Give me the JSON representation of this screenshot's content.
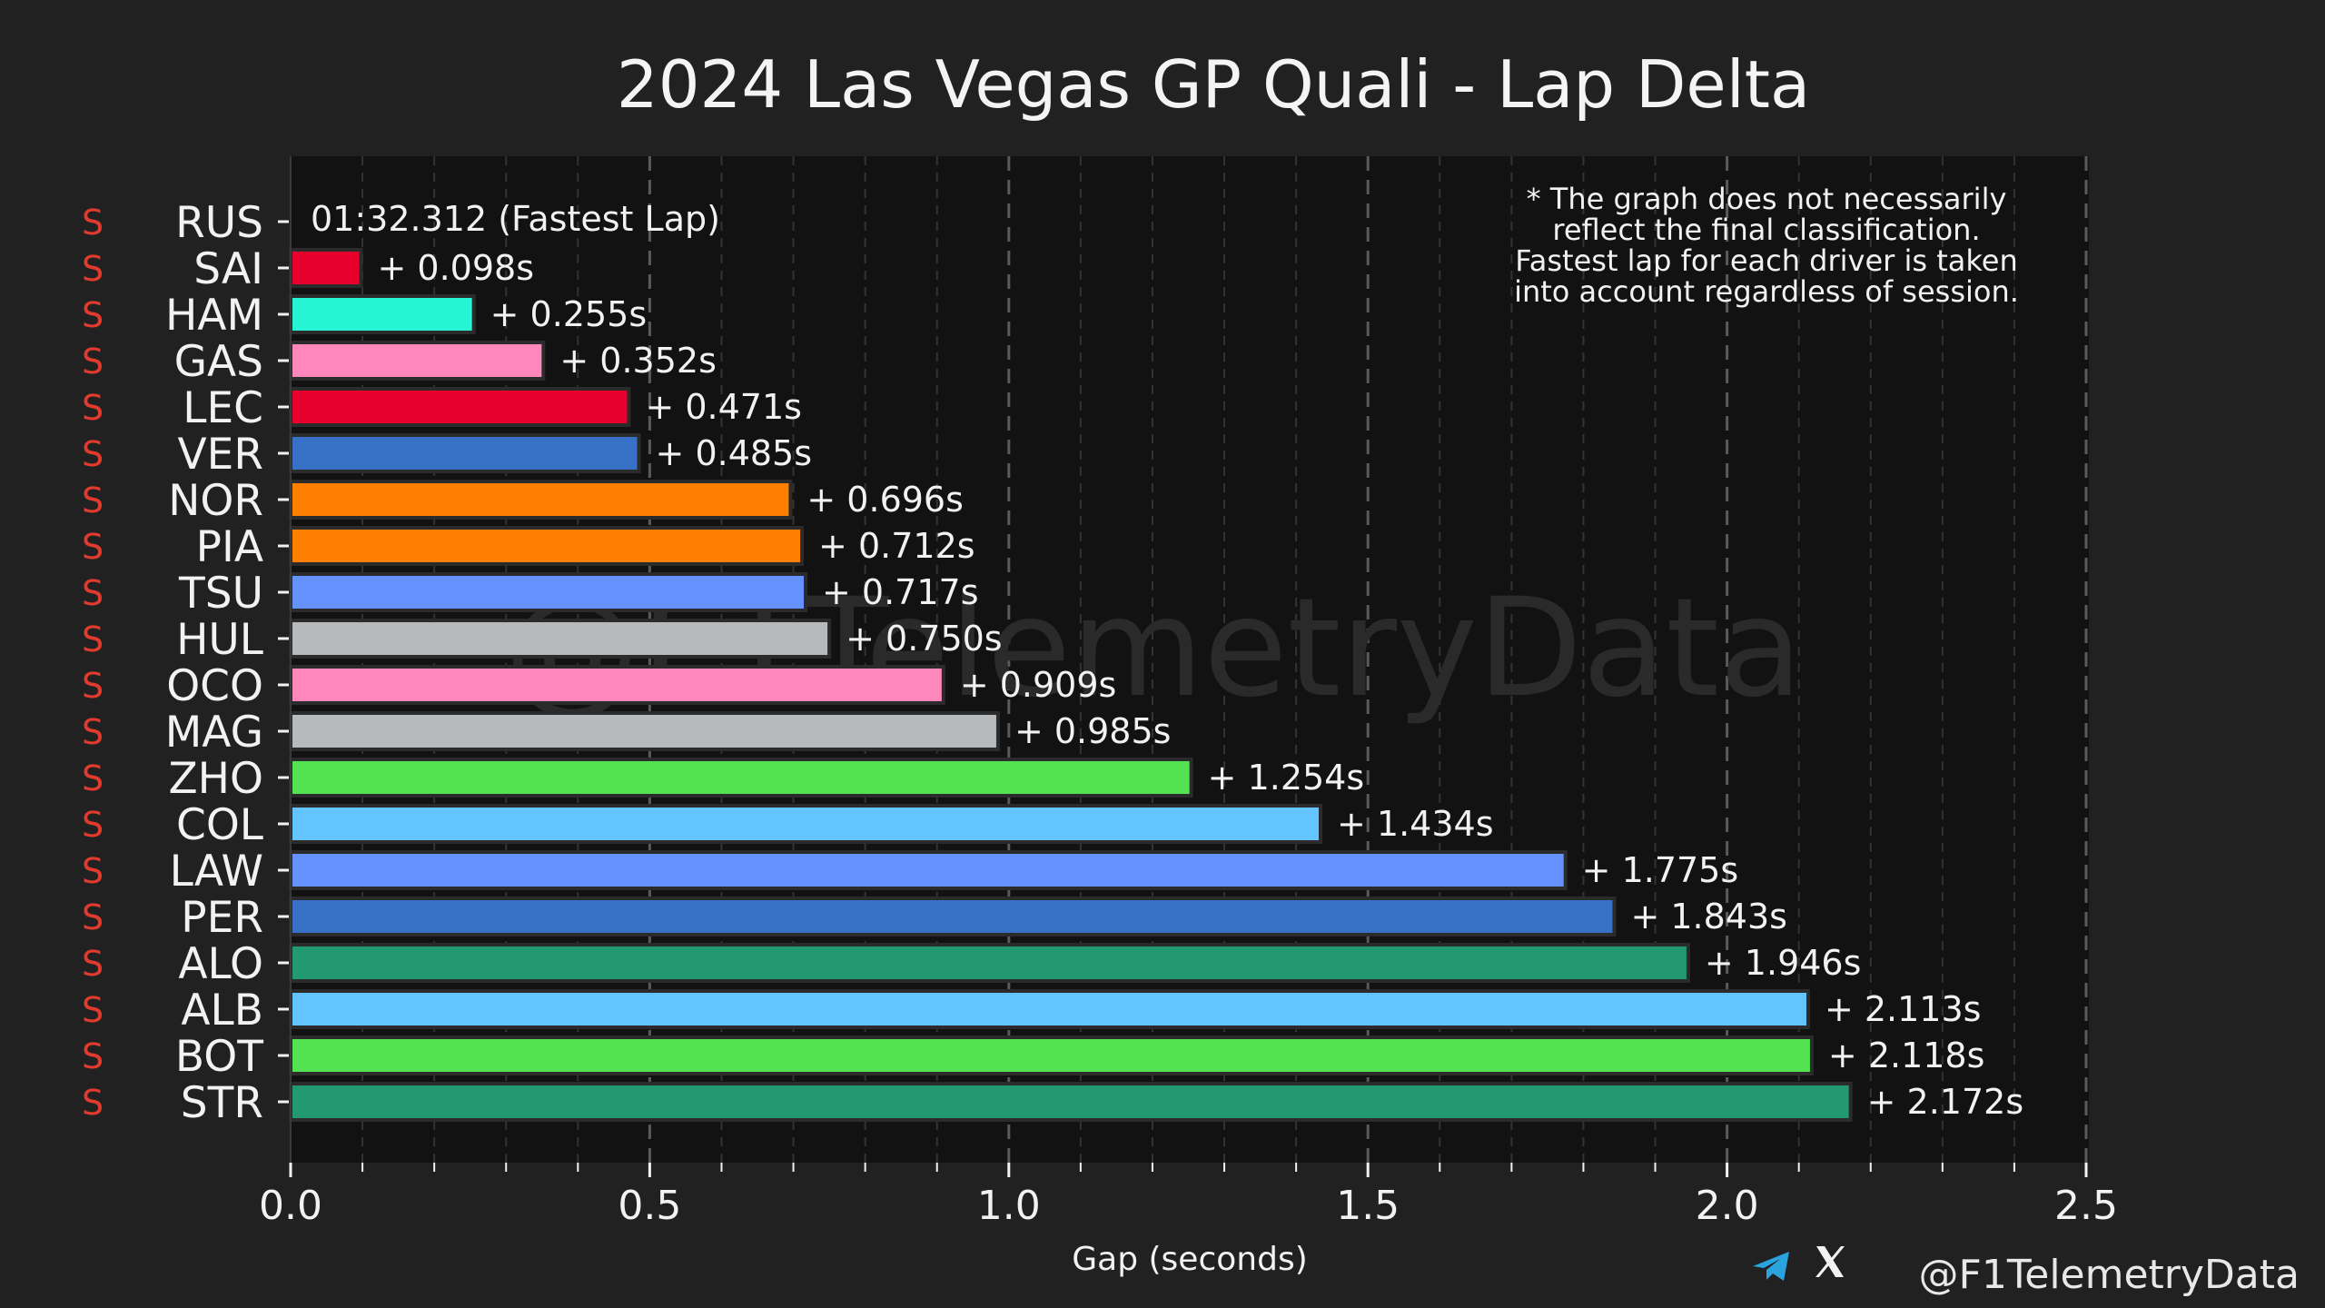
{
  "chart_data": {
    "type": "bar",
    "orientation": "horizontal",
    "title": "2024 Las Vegas GP Quali - Lap Delta",
    "xlabel": "Gap (seconds)",
    "ylabel": "",
    "xlim": [
      0.0,
      2.5
    ],
    "x_ticks": [
      "0.0",
      "0.5",
      "1.0",
      "1.5",
      "2.0",
      "2.5"
    ],
    "fastest_lap_label": "01:32.312 (Fastest Lap)",
    "note_lines": [
      "* The graph does not necessarily",
      "reflect the final classification.",
      "Fastest lap for each driver is taken",
      "into account regardless of session."
    ],
    "watermark": "@F1TelemetryData",
    "handle": "@F1TelemetryData",
    "drivers": [
      {
        "code": "RUS",
        "tyre": "S",
        "gap": 0.0,
        "label": "",
        "color": "#27f4d2"
      },
      {
        "code": "SAI",
        "tyre": "S",
        "gap": 0.098,
        "label": "+ 0.098s",
        "color": "#e8002d"
      },
      {
        "code": "HAM",
        "tyre": "S",
        "gap": 0.255,
        "label": "+ 0.255s",
        "color": "#27f4d2"
      },
      {
        "code": "GAS",
        "tyre": "S",
        "gap": 0.352,
        "label": "+ 0.352s",
        "color": "#ff87bc"
      },
      {
        "code": "LEC",
        "tyre": "S",
        "gap": 0.471,
        "label": "+ 0.471s",
        "color": "#e8002d"
      },
      {
        "code": "VER",
        "tyre": "S",
        "gap": 0.485,
        "label": "+ 0.485s",
        "color": "#3671c6"
      },
      {
        "code": "NOR",
        "tyre": "S",
        "gap": 0.696,
        "label": "+ 0.696s",
        "color": "#ff8000"
      },
      {
        "code": "PIA",
        "tyre": "S",
        "gap": 0.712,
        "label": "+ 0.712s",
        "color": "#ff8000"
      },
      {
        "code": "TSU",
        "tyre": "S",
        "gap": 0.717,
        "label": "+ 0.717s",
        "color": "#6692ff"
      },
      {
        "code": "HUL",
        "tyre": "S",
        "gap": 0.75,
        "label": "+ 0.750s",
        "color": "#b6babd"
      },
      {
        "code": "OCO",
        "tyre": "S",
        "gap": 0.909,
        "label": "+ 0.909s",
        "color": "#ff87bc"
      },
      {
        "code": "MAG",
        "tyre": "S",
        "gap": 0.985,
        "label": "+ 0.985s",
        "color": "#b6babd"
      },
      {
        "code": "ZHO",
        "tyre": "S",
        "gap": 1.254,
        "label": "+ 1.254s",
        "color": "#52e252"
      },
      {
        "code": "COL",
        "tyre": "S",
        "gap": 1.434,
        "label": "+ 1.434s",
        "color": "#64c4ff"
      },
      {
        "code": "LAW",
        "tyre": "S",
        "gap": 1.775,
        "label": "+ 1.775s",
        "color": "#6692ff"
      },
      {
        "code": "PER",
        "tyre": "S",
        "gap": 1.843,
        "label": "+ 1.843s",
        "color": "#3671c6"
      },
      {
        "code": "ALO",
        "tyre": "S",
        "gap": 1.946,
        "label": "+ 1.946s",
        "color": "#229971"
      },
      {
        "code": "ALB",
        "tyre": "S",
        "gap": 2.113,
        "label": "+ 2.113s",
        "color": "#64c4ff"
      },
      {
        "code": "BOT",
        "tyre": "S",
        "gap": 2.118,
        "label": "+ 2.118s",
        "color": "#52e252"
      },
      {
        "code": "STR",
        "tyre": "S",
        "gap": 2.172,
        "label": "+ 2.172s",
        "color": "#229971"
      }
    ]
  },
  "colors": {
    "background": "#212121",
    "plot_background": "#121212",
    "grid": "#4a4a4a",
    "tyre_soft": "#e23b2e",
    "telegram_icon": "#2aa3df"
  },
  "icons": [
    "telegram-icon",
    "x-icon"
  ]
}
